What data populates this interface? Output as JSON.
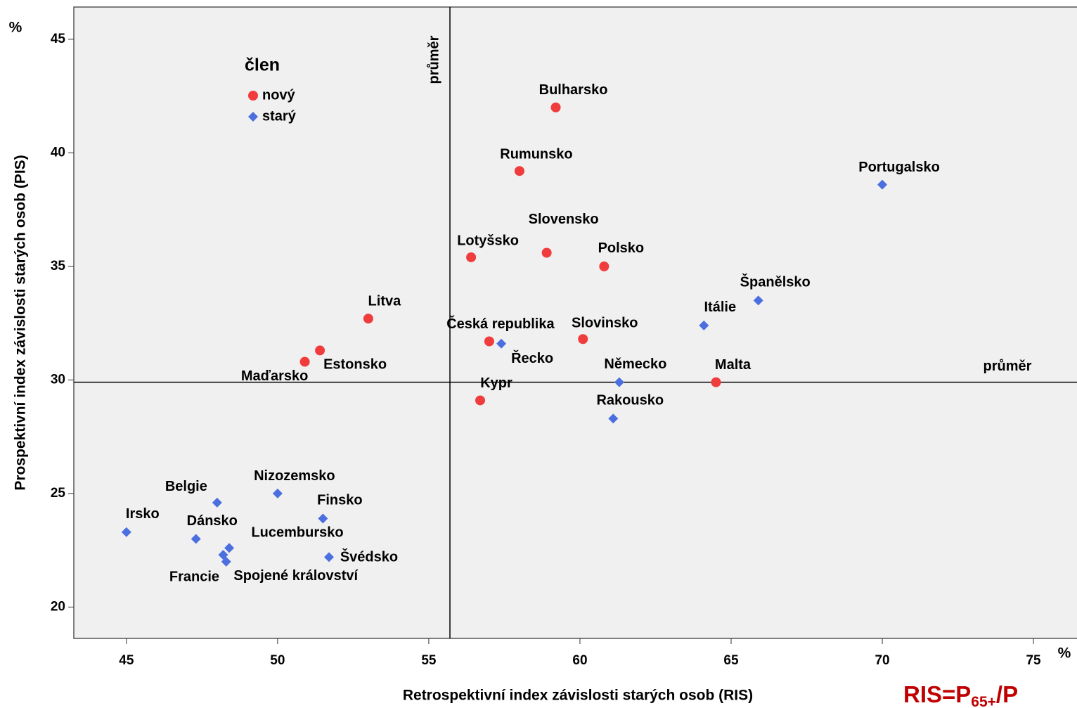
{
  "chart_data": {
    "type": "scatter",
    "x_label": "Retrospektivní index závislosti starých osob (RIS)",
    "y_label": "Prospektivní index závislosti starých osob (PIS)",
    "x_unit": "%",
    "y_unit": "%",
    "legend_title": "člen",
    "legend": "top-left",
    "xlim": [
      43.26,
      76.44
    ],
    "ylim": [
      18.62,
      46.42
    ],
    "xticks": [
      45,
      50,
      55,
      60,
      65,
      70,
      75
    ],
    "yticks": [
      20,
      25,
      30,
      35,
      40,
      45
    ],
    "reference_lines": {
      "x": 55.7,
      "x_label": "průměr",
      "y": 29.9,
      "y_label": "průměr"
    },
    "formula": {
      "main": "RIS=P",
      "sub": "65+",
      "rest": "/P"
    },
    "series": [
      {
        "name": "nový",
        "color": "#f03c3c",
        "marker": "circle",
        "labels": [
          "Bulharsko",
          "Rumunsko",
          "Slovensko",
          "Lotyšsko",
          "Polsko",
          "Litva",
          "Slovinsko",
          "Česká republika",
          "Estonsko",
          "Maďarsko",
          "Malta",
          "Kypr"
        ],
        "x": [
          59.2,
          58.0,
          58.9,
          56.4,
          60.8,
          53.0,
          60.1,
          57.0,
          51.4,
          50.9,
          64.5,
          56.7
        ],
        "values": [
          42.0,
          39.2,
          35.6,
          35.4,
          35.0,
          32.7,
          31.8,
          31.7,
          31.3,
          30.8,
          29.9,
          29.1
        ]
      },
      {
        "name": "starý",
        "color": "#4c6fe0",
        "marker": "diamond",
        "labels": [
          "Portugalsko",
          "Španělsko",
          "Itálie",
          "Řecko",
          "Německo",
          "Rakousko",
          "Nizozemsko",
          "Belgie",
          "Finsko",
          "Irsko",
          "Dánsko",
          "Lucembursko",
          "Francie",
          "Švédsko",
          "Spojené království"
        ],
        "x": [
          70.0,
          65.9,
          64.1,
          57.4,
          61.3,
          61.1,
          50.0,
          48.0,
          51.5,
          45.0,
          47.3,
          48.4,
          48.2,
          51.7,
          48.3
        ],
        "values": [
          38.6,
          33.5,
          32.4,
          31.6,
          29.9,
          28.3,
          25.0,
          24.6,
          23.9,
          23.3,
          23.0,
          22.6,
          22.3,
          22.2,
          22.0
        ]
      }
    ]
  }
}
